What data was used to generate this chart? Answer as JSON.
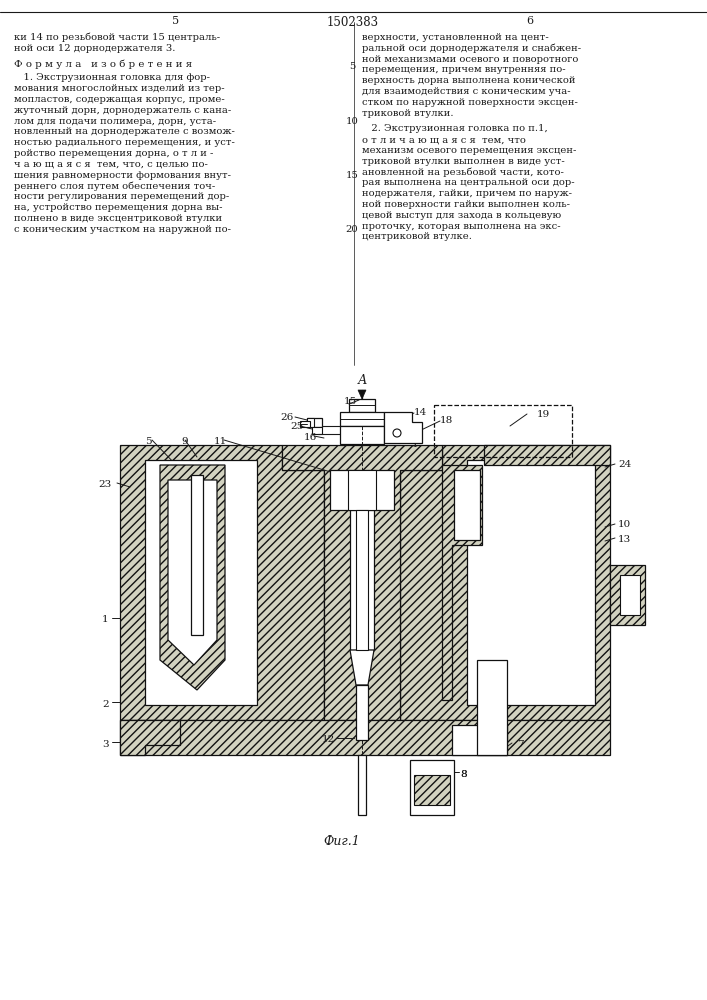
{
  "page_width": 7.07,
  "page_height": 10.0,
  "bg_color": "#ffffff",
  "text_color": "#1a1a1a",
  "line_color": "#1a1a1a",
  "patent_number": "1502383",
  "page_left": "5",
  "page_right": "6",
  "left_col_text": [
    "ки 14 по резьбовой части 15 централь-",
    "ной оси 12 дорнодержателя 3."
  ],
  "formula_header": "Ф о р м у л а   и з о б р е т е н и я",
  "left_formula_text": [
    "   1. Экструзионная головка для фор-",
    "мования многослойных изделий из тер-",
    "мопластов, содержащая корпус, проме-",
    "жуточный дорн, дорнодержатель с кана-",
    "лом для подачи полимера, дорн, уста-",
    "новленный на дорнодержателе с возмож-",
    "ностью радиального перемещения, и уст-",
    "ройство перемещения дорна, о т л и -",
    "ч а ю щ а я с я  тем, что, с целью по-",
    "шения равномерности формования внут-",
    "реннего слоя путем обеспечения точ-",
    "ности регулирования перемещений дор-",
    "на, устройство перемещения дорна вы-",
    "полнено в виде эксцентриковой втулки",
    "с коническим участком на наружной по-"
  ],
  "right_col_text_top": [
    "верхности, установленной на цент-",
    "ральной оси дорнодержателя и снабжен-",
    "ной механизмами осевого и поворотного",
    "перемещения, причем внутренняя по-",
    "верхность дорна выполнена конической",
    "для взаимодействия с коническим уча-",
    "стком по наружной поверхности эксцен-",
    "триковой втулки."
  ],
  "right_formula_2": [
    "   2. Экструзионная головка по п.1,",
    "о т л и ч а ю щ а я с я  тем, что",
    "механизм осевого перемещения эксцен-",
    "триковой втулки выполнен в виде уст-",
    "ановленной на резьбовой части, кото-",
    "рая выполнена на центральной оси дор-",
    "нодержателя, гайки, причем по наруж-",
    "ной поверхности гайки выполнен коль-",
    "цевой выступ для захода в кольцевую",
    "проточку, которая выполнена на экс-",
    "центриковой втулке."
  ],
  "fig_label": "Фиг.1",
  "arrow_label": "А"
}
